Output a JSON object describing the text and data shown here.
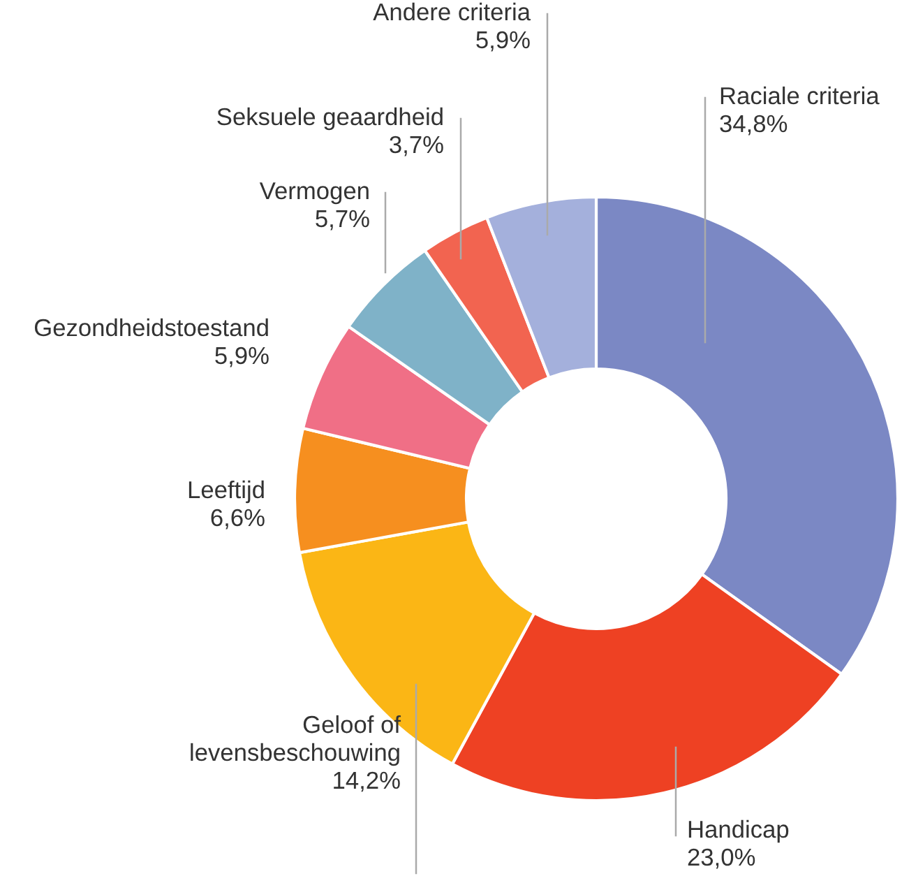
{
  "chart_data": {
    "type": "donut",
    "categories": [
      "Raciale criteria",
      "Handicap",
      "Geloof of\nlevensbeschouwing",
      "Leeftijd",
      "Gezondheidstoestand",
      "Vermogen",
      "Seksuele geaardheid",
      "Andere criteria"
    ],
    "values": [
      34.8,
      23.0,
      14.2,
      6.6,
      5.9,
      5.7,
      3.7,
      5.9
    ],
    "value_labels": [
      "34,8%",
      "23,0%",
      "14,2%",
      "6,6%",
      "5,9%",
      "5,7%",
      "3,7%",
      "5,9%"
    ],
    "colors": [
      "#7b88c4",
      "#ee4123",
      "#fbb615",
      "#f68f1f",
      "#f06f86",
      "#7fb2c8",
      "#f26450",
      "#a4b0dc"
    ]
  }
}
